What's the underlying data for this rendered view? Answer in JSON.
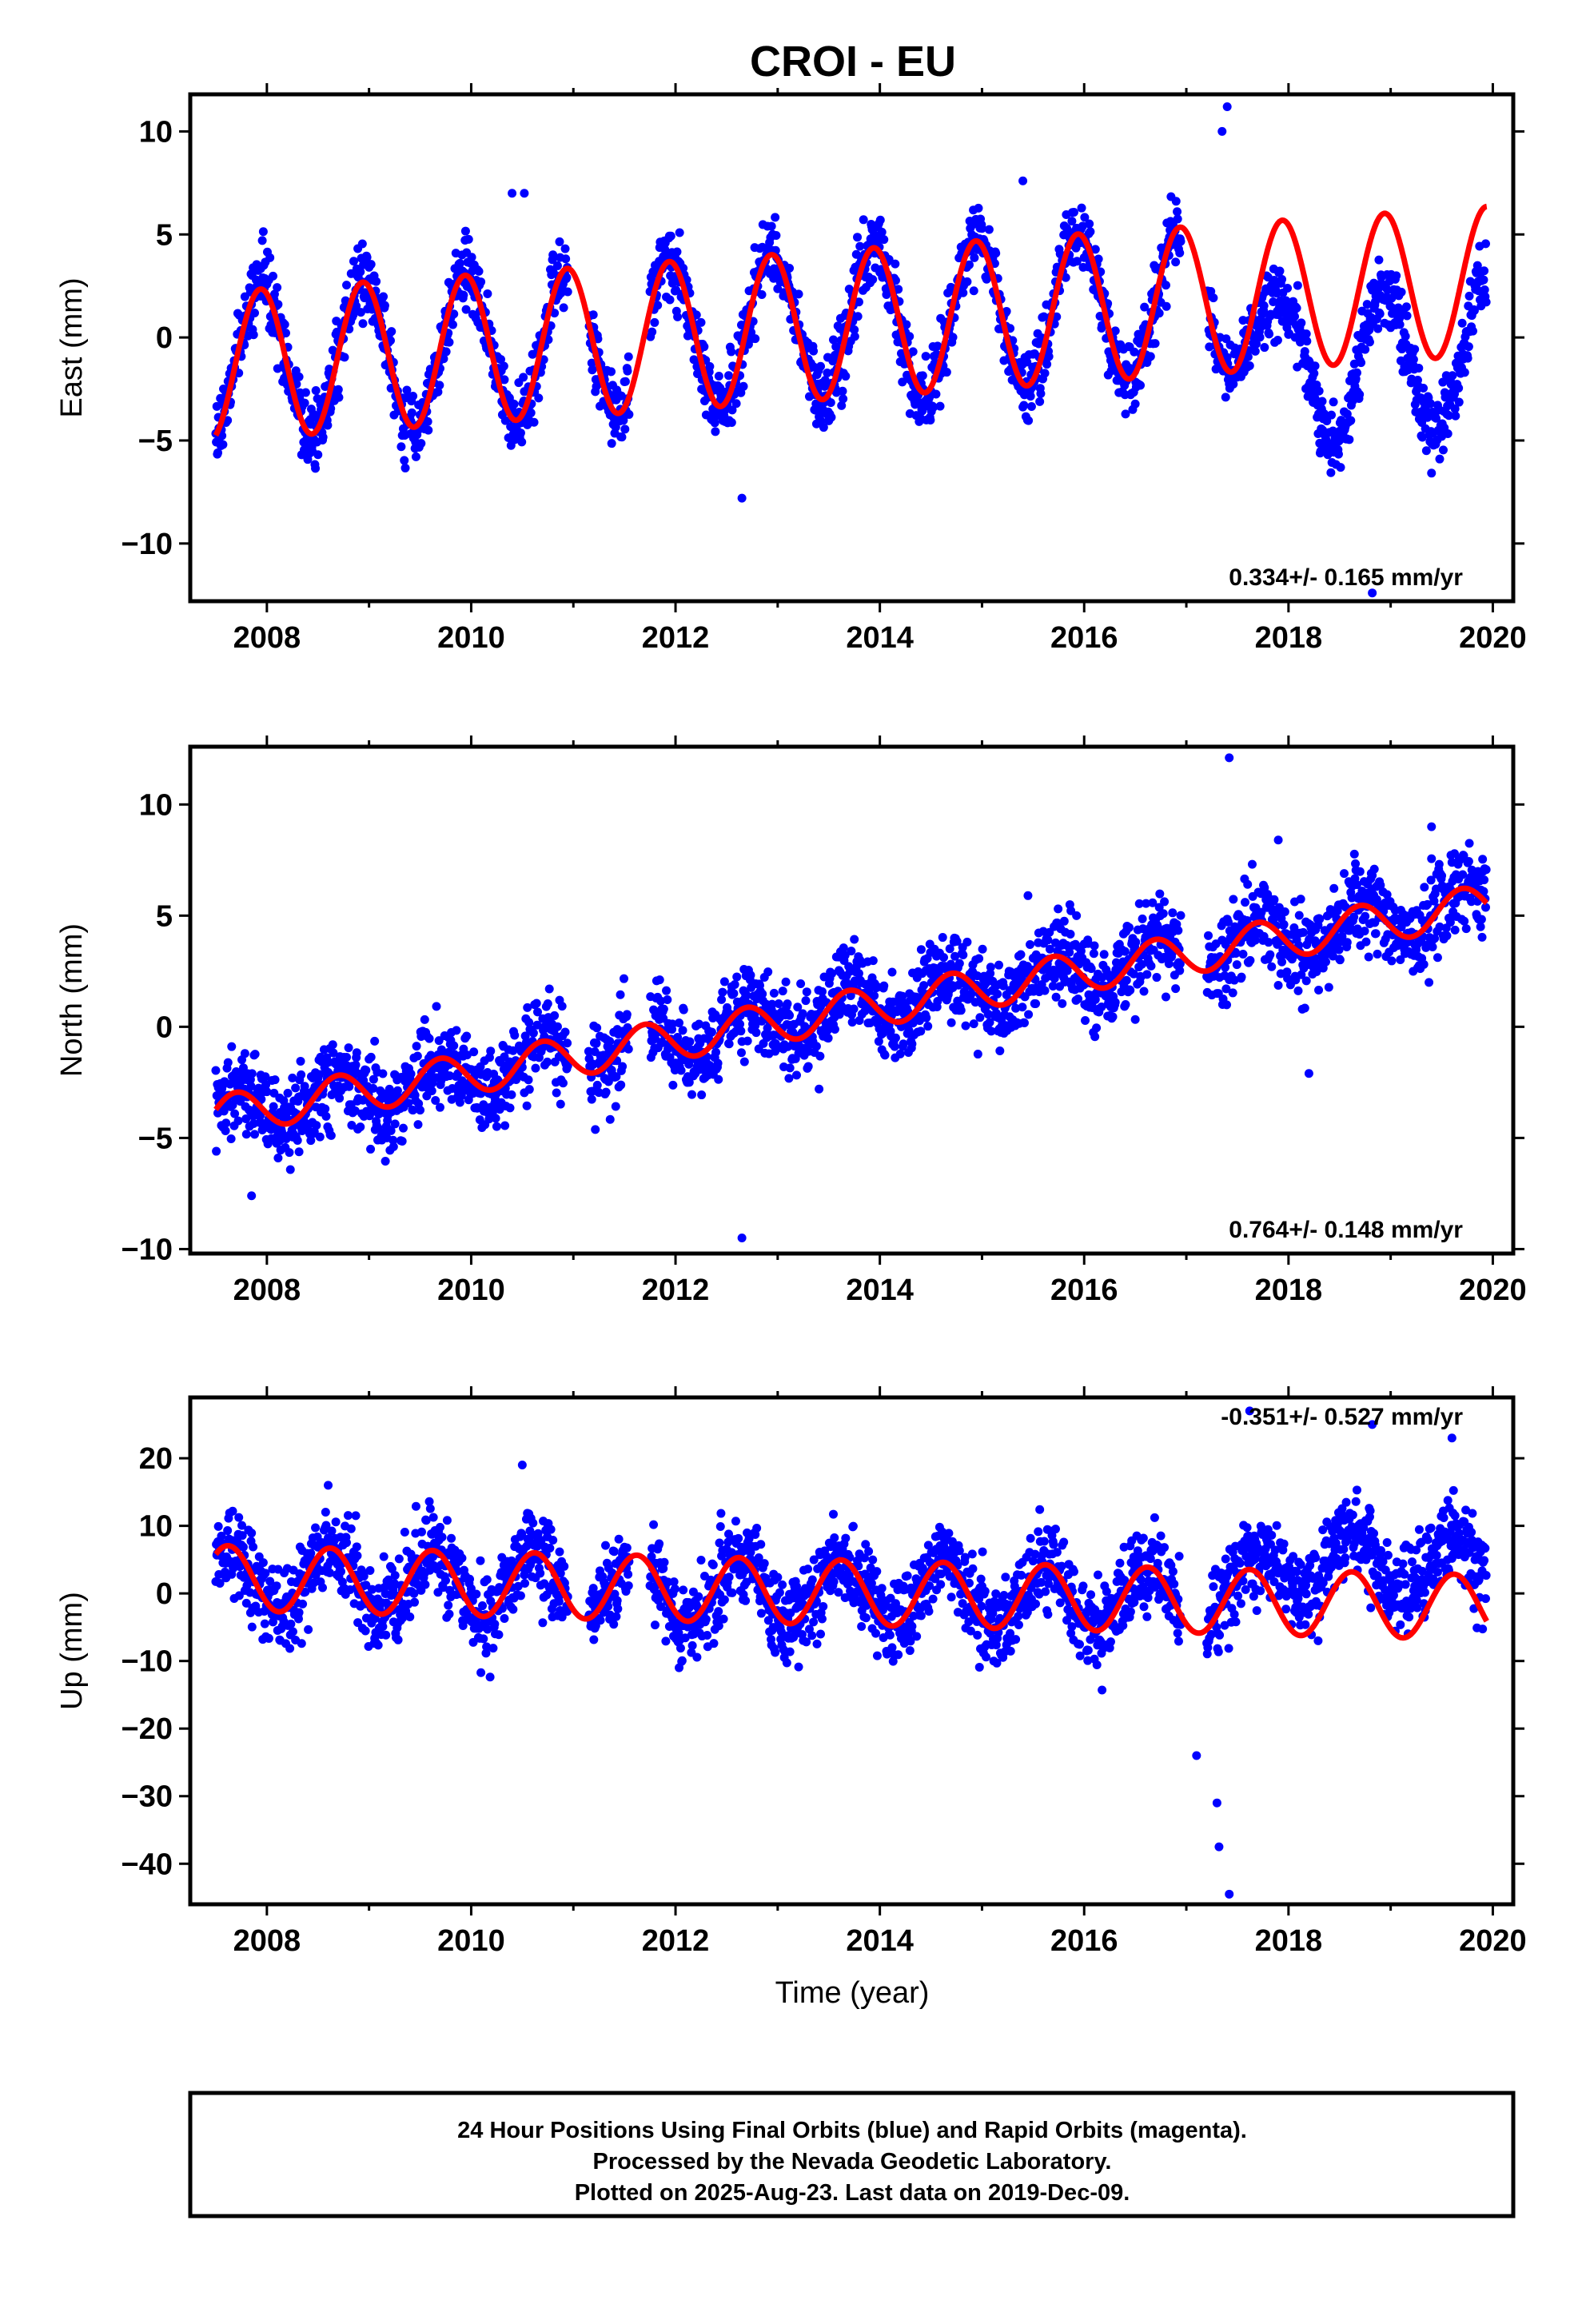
{
  "figure": {
    "title": "CROI - EU",
    "xlabel": "Time (year)",
    "footer": [
      "24 Hour Positions Using Final Orbits (blue) and Rapid Orbits (magenta).",
      "Processed by the Nevada Geodetic Laboratory.",
      "Plotted on 2025-Aug-23. Last data on 2019-Dec-09."
    ]
  },
  "colors": {
    "data_points": "#0000ff",
    "model_fit": "#ff0000",
    "frame": "#000000"
  },
  "chart_data": [
    {
      "type": "scatter",
      "ylabel": "East (mm)",
      "xlim": [
        2007.25,
        2020.2
      ],
      "ylim": [
        -12.8,
        11.8
      ],
      "xticks": [
        2008,
        2010,
        2012,
        2014,
        2016,
        2018,
        2020
      ],
      "yticks": [
        -10,
        -5,
        0,
        5,
        10
      ],
      "rate_label": "0.334+/- 0.165 mm/yr",
      "series": [
        {
          "role": "daily positions",
          "color": "#0000ff",
          "segments": [
            [
              2007.5,
              2010.95
            ],
            [
              2011.15,
              2011.55
            ],
            [
              2011.75,
              2016.95
            ],
            [
              2017.2,
              2019.94
            ]
          ],
          "annual_amplitude": 3.6,
          "annual_phase": 2007.69,
          "trend": 0.334,
          "offset": -1.4,
          "noise": 0.9,
          "late_shift_from": 2017.55,
          "late_shift": -3.6
        },
        {
          "role": "model fit",
          "color": "#ff0000",
          "x_range": [
            2007.5,
            2019.94
          ],
          "annual_amplitude": 3.6,
          "annual_phase": 2007.69,
          "trend": 0.334,
          "offset": -1.4
        }
      ],
      "outliers": [
        [
          2017.4,
          11.2
        ],
        [
          2017.35,
          10.0
        ],
        [
          2012.65,
          -7.8
        ],
        [
          2018.82,
          -12.4
        ],
        [
          2010.4,
          7.0
        ],
        [
          2010.52,
          7.0
        ],
        [
          2015.4,
          7.6
        ]
      ]
    },
    {
      "type": "scatter",
      "ylabel": "North (mm)",
      "xlim": [
        2007.25,
        2020.2
      ],
      "ylim": [
        -10.2,
        12.6
      ],
      "xticks": [
        2008,
        2010,
        2012,
        2014,
        2016,
        2018,
        2020
      ],
      "yticks": [
        -10,
        -5,
        0,
        5,
        10
      ],
      "rate_label": "0.764+/- 0.148 mm/yr",
      "series": [
        {
          "role": "daily positions",
          "color": "#0000ff",
          "segments": [
            [
              2007.5,
              2010.95
            ],
            [
              2011.15,
              2011.55
            ],
            [
              2011.75,
              2016.95
            ],
            [
              2017.2,
              2019.94
            ]
          ],
          "annual_amplitude": 0.9,
          "annual_phase": 2007.45,
          "trend": 0.764,
          "offset": -4.0,
          "noise": 1.0
        },
        {
          "role": "model fit",
          "color": "#ff0000",
          "x_range": [
            2007.5,
            2019.94
          ],
          "annual_amplitude": 0.9,
          "annual_phase": 2007.45,
          "trend": 0.764,
          "offset": -4.0
        }
      ],
      "outliers": [
        [
          2017.42,
          12.1
        ],
        [
          2012.65,
          -9.5
        ],
        [
          2015.45,
          5.9
        ],
        [
          2007.85,
          -7.6
        ],
        [
          2017.9,
          8.4
        ],
        [
          2019.4,
          9.0
        ],
        [
          2018.2,
          -2.1
        ]
      ]
    },
    {
      "type": "scatter",
      "ylabel": "Up (mm)",
      "xlim": [
        2007.25,
        2020.2
      ],
      "ylim": [
        -46,
        29
      ],
      "xticks": [
        2008,
        2010,
        2012,
        2014,
        2016,
        2018,
        2020
      ],
      "yticks": [
        -40,
        -30,
        -20,
        -10,
        0,
        10,
        20
      ],
      "rate_label": "-0.351+/- 0.527 mm/yr",
      "series": [
        {
          "role": "daily positions",
          "color": "#0000ff",
          "segments": [
            [
              2007.5,
              2010.95
            ],
            [
              2011.15,
              2011.55
            ],
            [
              2011.75,
              2016.95
            ],
            [
              2017.2,
              2019.94
            ]
          ],
          "annual_amplitude": 4.8,
          "annual_phase": 2007.37,
          "trend": -0.351,
          "offset": 2.3,
          "noise": 3.2,
          "late_shift_from": 2017.55,
          "late_shift": 6.0
        },
        {
          "role": "model fit",
          "color": "#ff0000",
          "x_range": [
            2007.5,
            2019.94
          ],
          "annual_amplitude": 4.8,
          "annual_phase": 2007.37,
          "trend": -0.351,
          "offset": 2.3
        }
      ],
      "outliers": [
        [
          2017.42,
          -44.5
        ],
        [
          2017.32,
          -37.5
        ],
        [
          2017.3,
          -31.0
        ],
        [
          2017.1,
          -24.0
        ],
        [
          2018.82,
          25.0
        ],
        [
          2017.62,
          27.0
        ],
        [
          2019.6,
          23.0
        ],
        [
          2010.5,
          19.0
        ],
        [
          2008.6,
          16.0
        ]
      ]
    }
  ]
}
